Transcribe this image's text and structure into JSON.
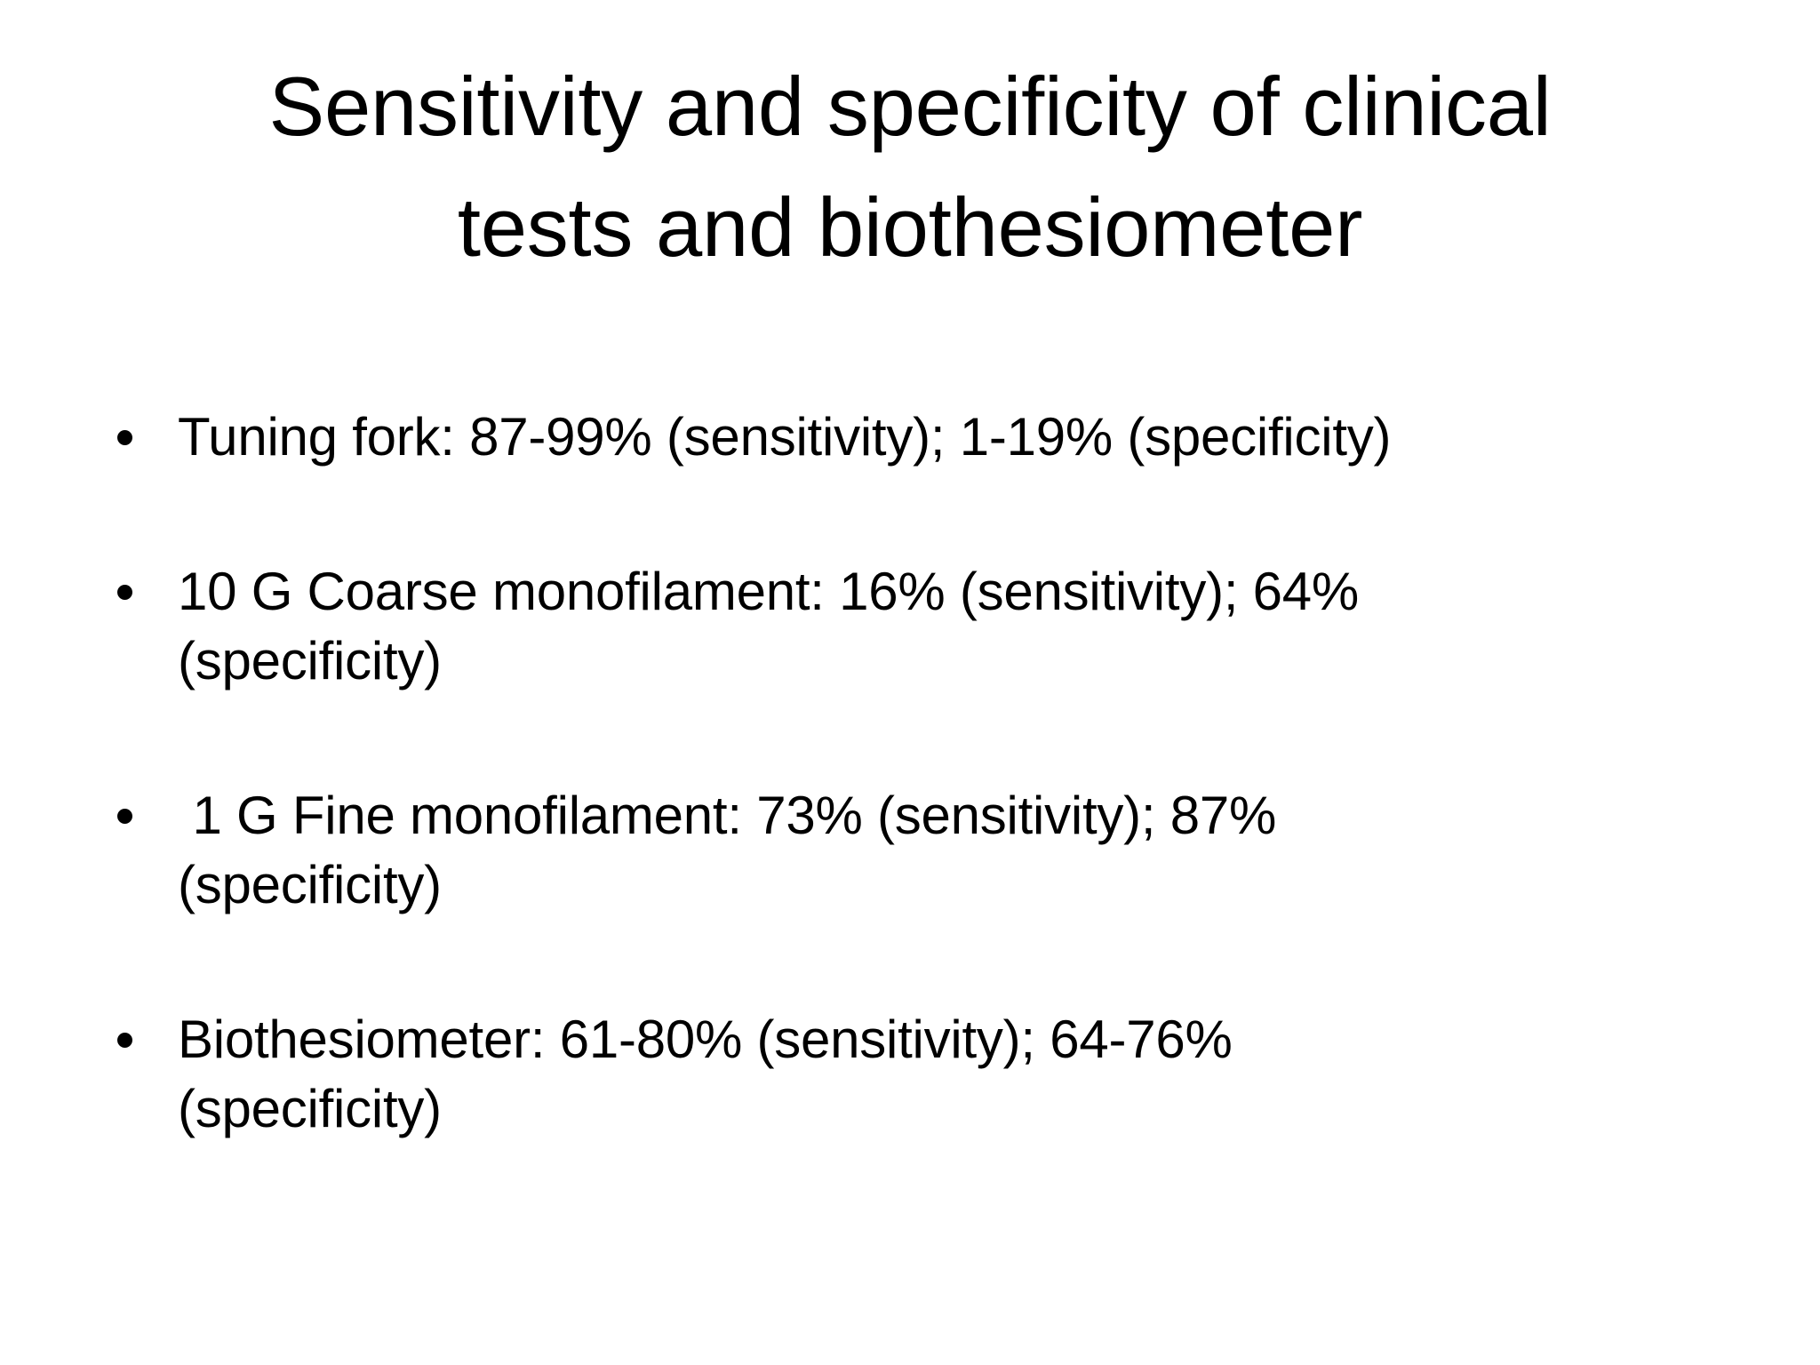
{
  "colors": {
    "background": "#ffffff",
    "text": "#000000"
  },
  "slide": {
    "title_lines": [
      "Sensitivity and specificity of clinical",
      "tests and biothesiometer"
    ],
    "bullets": [
      {
        "lines": [
          "Tuning fork: 87-99% (sensitivity); 1-19% (specificity)"
        ]
      },
      {
        "lines": [
          "10 G Coarse monofilament: 16% (sensitivity); 64%",
          "(specificity)"
        ]
      },
      {
        "lines": [
          " 1 G Fine monofilament: 73% (sensitivity); 87%",
          "(specificity)"
        ]
      },
      {
        "lines": [
          "Biothesiometer: 61-80% (sensitivity); 64-76%",
          "(specificity)"
        ]
      }
    ]
  }
}
